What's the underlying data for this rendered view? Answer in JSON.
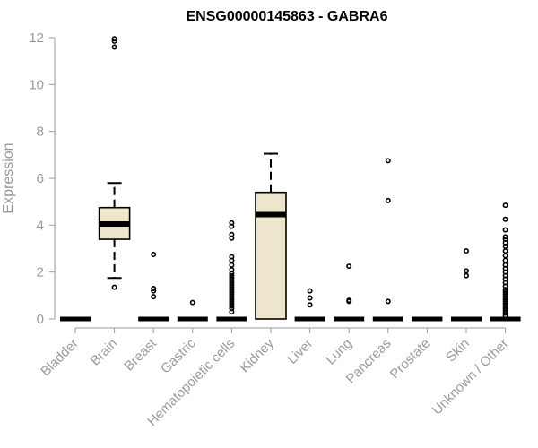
{
  "chart_data": {
    "type": "boxplot",
    "title": "ENSG00000145863 - GABRA6",
    "xlabel": "",
    "ylabel": "Expression",
    "ylim": [
      0,
      12
    ],
    "yticks": [
      0,
      2,
      4,
      6,
      8,
      10,
      12
    ],
    "box_fill": "#ede6cc",
    "categories": [
      "Bladder",
      "Brain",
      "Breast",
      "Gastric",
      "Hematopoietic cells",
      "Kidney",
      "Liver",
      "Lung",
      "Pancreas",
      "Prostate",
      "Skin",
      "Unknown / Other"
    ],
    "boxes": [
      {
        "category": "Bladder",
        "q1": 0,
        "median": 0,
        "q3": 0,
        "whisker_low": 0,
        "whisker_high": 0,
        "outliers": []
      },
      {
        "category": "Brain",
        "q1": 3.4,
        "median": 4.05,
        "q3": 4.75,
        "whisker_low": 1.75,
        "whisker_high": 5.8,
        "outliers": [
          1.35,
          11.6,
          11.85,
          11.95
        ]
      },
      {
        "category": "Breast",
        "q1": 0,
        "median": 0,
        "q3": 0,
        "whisker_low": 0,
        "whisker_high": 0,
        "outliers": [
          0.95,
          1.2,
          1.3,
          2.75
        ]
      },
      {
        "category": "Gastric",
        "q1": 0,
        "median": 0,
        "q3": 0,
        "whisker_low": 0,
        "whisker_high": 0,
        "outliers": [
          0.7
        ]
      },
      {
        "category": "Hematopoietic cells",
        "q1": 0,
        "median": 0,
        "q3": 0,
        "whisker_low": 0,
        "whisker_high": 0,
        "outliers": [
          0.3,
          0.45,
          0.55,
          0.65,
          0.75,
          0.85,
          0.95,
          1.05,
          1.15,
          1.25,
          1.35,
          1.45,
          1.55,
          1.65,
          1.75,
          1.85,
          1.95,
          2.1,
          2.3,
          2.5,
          2.65,
          3.45,
          3.6,
          3.95,
          4.1
        ]
      },
      {
        "category": "Kidney",
        "q1": 0,
        "median": 4.45,
        "q3": 5.4,
        "whisker_low": 0,
        "whisker_high": 7.05,
        "outliers": []
      },
      {
        "category": "Liver",
        "q1": 0,
        "median": 0,
        "q3": 0,
        "whisker_low": 0,
        "whisker_high": 0,
        "outliers": [
          0.6,
          0.9,
          1.2
        ]
      },
      {
        "category": "Lung",
        "q1": 0,
        "median": 0,
        "q3": 0,
        "whisker_low": 0,
        "whisker_high": 0,
        "outliers": [
          0.75,
          0.8,
          2.25
        ]
      },
      {
        "category": "Pancreas",
        "q1": 0,
        "median": 0,
        "q3": 0,
        "whisker_low": 0,
        "whisker_high": 0,
        "outliers": [
          0.75,
          5.05,
          6.75
        ]
      },
      {
        "category": "Prostate",
        "q1": 0,
        "median": 0,
        "q3": 0,
        "whisker_low": 0,
        "whisker_high": 0,
        "outliers": []
      },
      {
        "category": "Skin",
        "q1": 0,
        "median": 0,
        "q3": 0,
        "whisker_low": 0,
        "whisker_high": 0,
        "outliers": [
          1.85,
          2.05,
          2.9
        ]
      },
      {
        "category": "Unknown / Other",
        "q1": 0,
        "median": 0,
        "q3": 0,
        "whisker_low": 0,
        "whisker_high": 0,
        "outliers": [
          0.15,
          0.25,
          0.35,
          0.45,
          0.55,
          0.65,
          0.75,
          0.85,
          0.95,
          1.05,
          1.15,
          1.25,
          1.4,
          1.55,
          1.7,
          1.85,
          2.0,
          2.15,
          2.3,
          2.5,
          2.7,
          2.9,
          3.1,
          3.25,
          3.4,
          3.5,
          3.8,
          4.25,
          4.85
        ]
      }
    ]
  }
}
